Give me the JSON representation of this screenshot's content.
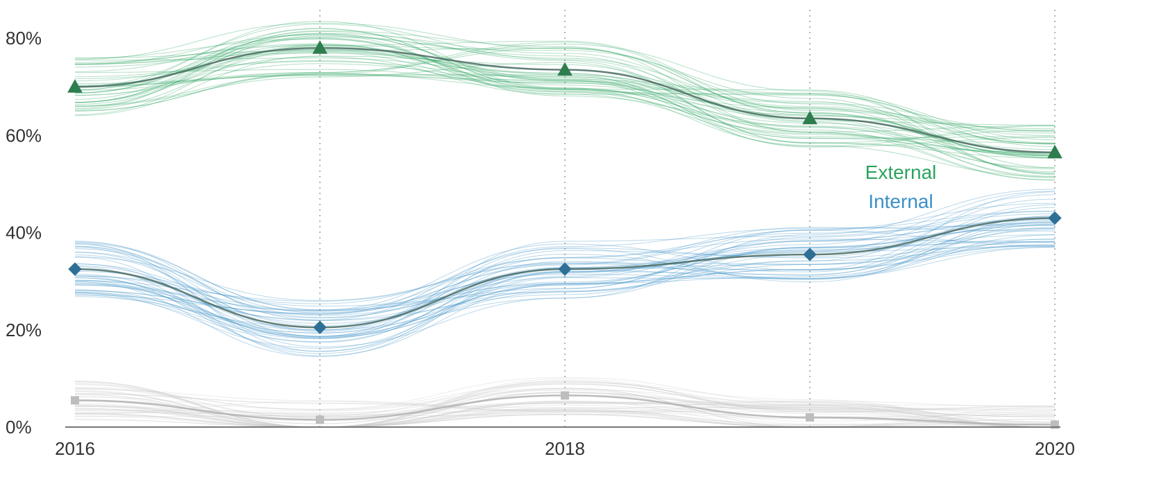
{
  "chart_data": {
    "type": "line",
    "x_ticks": [
      "2016",
      "2018",
      "2020"
    ],
    "y_ticks": [
      "0%",
      "20%",
      "40%",
      "60%",
      "80%"
    ],
    "x_range": [
      2016,
      2020
    ],
    "y_range": [
      0,
      85
    ],
    "grid": {
      "x_dotted_at": [
        2017,
        2018,
        2019,
        2020
      ]
    },
    "x": [
      2016,
      2017,
      2018,
      2019,
      2020
    ],
    "series": [
      {
        "name": "External",
        "color": "#2ca25f",
        "marker": "triangle",
        "values": [
          70,
          78,
          73.5,
          63.5,
          56.5
        ]
      },
      {
        "name": "Internal",
        "color": "#3a8fc7",
        "marker": "diamond",
        "values": [
          32.5,
          20.5,
          32.5,
          35.5,
          43
        ]
      },
      {
        "name": "",
        "color": "#bbbbbb",
        "marker": "square",
        "values": [
          5.5,
          1.5,
          6.5,
          2,
          0.5
        ]
      }
    ],
    "band_color_external": "#2ca25f",
    "band_color_internal": "#3a8fc7",
    "band_color_other": "#c8c8c8",
    "label_color_external": "#2ca25f",
    "label_color_internal": "#3a8fc7"
  }
}
